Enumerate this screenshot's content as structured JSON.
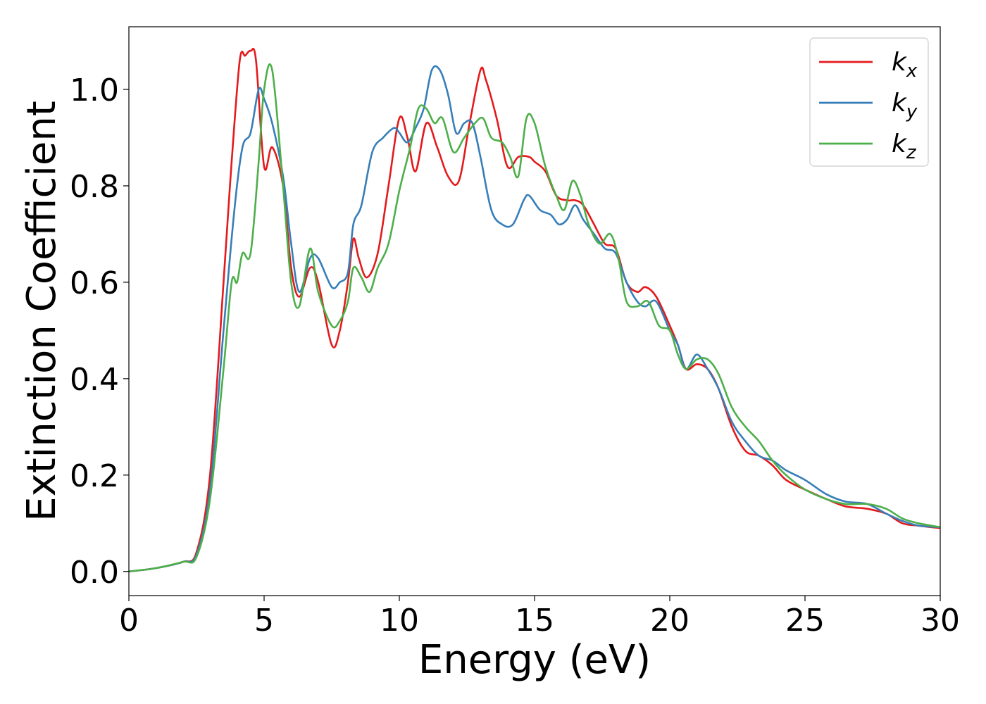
{
  "chart_data": {
    "type": "line",
    "xlabel": "Energy (eV)",
    "ylabel": "Extinction Coefficient",
    "xlim": [
      0,
      30
    ],
    "ylim": [
      -0.05,
      1.13
    ],
    "xticks": [
      0,
      5,
      10,
      15,
      20,
      25,
      30
    ],
    "yticks": [
      0.0,
      0.2,
      0.4,
      0.6,
      0.8,
      1.0
    ],
    "xtick_labels": [
      "0",
      "5",
      "10",
      "15",
      "20",
      "25",
      "30"
    ],
    "ytick_labels": [
      "0.0",
      "0.2",
      "0.4",
      "0.6",
      "0.8",
      "1.0"
    ],
    "grid": false,
    "legend_position": "top-right",
    "series": [
      {
        "name": "k",
        "subscript": "x",
        "color": "#e41a1c",
        "x": [
          0,
          1,
          2,
          2.5,
          3,
          3.5,
          3.8,
          4.1,
          4.3,
          4.5,
          4.7,
          5.0,
          5.3,
          5.7,
          6.0,
          6.3,
          6.7,
          7.0,
          7.5,
          7.8,
          8.1,
          8.3,
          8.5,
          8.8,
          9.2,
          9.6,
          10.0,
          10.3,
          10.6,
          11.0,
          11.4,
          11.8,
          12.2,
          12.6,
          13.0,
          13.2,
          13.6,
          14.0,
          14.4,
          14.8,
          15.0,
          15.4,
          15.8,
          16.2,
          16.5,
          16.8,
          17.2,
          17.6,
          18.0,
          18.4,
          18.8,
          19.1,
          19.5,
          20.0,
          20.3,
          20.6,
          21.0,
          21.4,
          21.8,
          22.3,
          22.8,
          23.3,
          23.8,
          24.3,
          25.0,
          25.8,
          26.5,
          27.3,
          28.0,
          28.6,
          29.2,
          30.0
        ],
        "y": [
          0.0,
          0.007,
          0.02,
          0.04,
          0.2,
          0.6,
          0.85,
          1.06,
          1.07,
          1.08,
          1.06,
          0.84,
          0.88,
          0.8,
          0.63,
          0.57,
          0.63,
          0.6,
          0.47,
          0.5,
          0.6,
          0.69,
          0.65,
          0.61,
          0.66,
          0.8,
          0.94,
          0.9,
          0.83,
          0.93,
          0.88,
          0.82,
          0.81,
          0.93,
          1.04,
          1.02,
          0.94,
          0.84,
          0.86,
          0.86,
          0.85,
          0.83,
          0.78,
          0.77,
          0.77,
          0.76,
          0.72,
          0.68,
          0.67,
          0.6,
          0.58,
          0.59,
          0.57,
          0.51,
          0.47,
          0.42,
          0.43,
          0.42,
          0.38,
          0.3,
          0.25,
          0.24,
          0.22,
          0.19,
          0.17,
          0.15,
          0.135,
          0.13,
          0.12,
          0.1,
          0.095,
          0.09
        ]
      },
      {
        "name": "k",
        "subscript": "y",
        "color": "#377eb8",
        "x": [
          0,
          1,
          2,
          2.5,
          3,
          3.5,
          3.9,
          4.2,
          4.5,
          4.8,
          5.0,
          5.3,
          5.7,
          6.0,
          6.3,
          6.7,
          7.0,
          7.5,
          7.8,
          8.1,
          8.3,
          8.6,
          9.0,
          9.4,
          9.8,
          10.0,
          10.3,
          10.6,
          10.9,
          11.2,
          11.5,
          11.8,
          12.1,
          12.4,
          12.7,
          13.0,
          13.4,
          13.8,
          14.2,
          14.6,
          14.8,
          15.2,
          15.6,
          15.9,
          16.2,
          16.5,
          16.8,
          17.2,
          17.6,
          18.0,
          18.4,
          18.8,
          19.1,
          19.5,
          20.0,
          20.3,
          20.6,
          21.0,
          21.4,
          21.8,
          22.3,
          22.8,
          23.3,
          23.8,
          24.3,
          25.0,
          25.8,
          26.5,
          27.3,
          28.0,
          28.6,
          29.2,
          30.0
        ],
        "y": [
          0.0,
          0.007,
          0.02,
          0.035,
          0.17,
          0.5,
          0.75,
          0.88,
          0.91,
          1.0,
          0.98,
          0.93,
          0.82,
          0.68,
          0.58,
          0.65,
          0.65,
          0.59,
          0.6,
          0.62,
          0.72,
          0.76,
          0.87,
          0.9,
          0.92,
          0.91,
          0.89,
          0.92,
          0.96,
          1.04,
          1.04,
          0.99,
          0.91,
          0.93,
          0.93,
          0.86,
          0.75,
          0.72,
          0.72,
          0.77,
          0.78,
          0.75,
          0.74,
          0.72,
          0.73,
          0.76,
          0.73,
          0.7,
          0.67,
          0.66,
          0.6,
          0.56,
          0.55,
          0.56,
          0.5,
          0.47,
          0.42,
          0.45,
          0.42,
          0.38,
          0.31,
          0.27,
          0.24,
          0.23,
          0.21,
          0.19,
          0.16,
          0.145,
          0.14,
          0.12,
          0.105,
          0.095,
          0.092
        ]
      },
      {
        "name": "k",
        "subscript": "z",
        "color": "#4daf4a",
        "x": [
          0,
          1,
          2,
          2.5,
          3,
          3.5,
          3.8,
          4.0,
          4.2,
          4.5,
          4.8,
          5.0,
          5.3,
          5.7,
          6.0,
          6.3,
          6.7,
          7.0,
          7.5,
          7.8,
          8.1,
          8.3,
          8.6,
          8.9,
          9.2,
          9.6,
          10.0,
          10.4,
          10.7,
          11.0,
          11.3,
          11.6,
          12.0,
          12.4,
          12.8,
          13.1,
          13.4,
          13.8,
          14.1,
          14.4,
          14.7,
          15.0,
          15.4,
          15.8,
          16.1,
          16.4,
          16.7,
          17.0,
          17.4,
          17.8,
          18.1,
          18.4,
          18.8,
          19.2,
          19.6,
          20.0,
          20.3,
          20.6,
          21.0,
          21.4,
          21.8,
          22.3,
          22.8,
          23.3,
          23.8,
          24.3,
          25.0,
          25.8,
          26.5,
          27.3,
          28.0,
          28.6,
          29.2,
          30.0
        ],
        "y": [
          0.0,
          0.007,
          0.02,
          0.03,
          0.15,
          0.42,
          0.6,
          0.6,
          0.66,
          0.66,
          0.85,
          1.0,
          1.04,
          0.8,
          0.6,
          0.55,
          0.67,
          0.58,
          0.51,
          0.52,
          0.56,
          0.63,
          0.61,
          0.58,
          0.63,
          0.68,
          0.79,
          0.88,
          0.96,
          0.96,
          0.93,
          0.94,
          0.87,
          0.9,
          0.93,
          0.94,
          0.9,
          0.89,
          0.86,
          0.82,
          0.94,
          0.93,
          0.84,
          0.78,
          0.75,
          0.81,
          0.78,
          0.72,
          0.68,
          0.7,
          0.65,
          0.56,
          0.55,
          0.56,
          0.51,
          0.5,
          0.45,
          0.42,
          0.44,
          0.44,
          0.41,
          0.34,
          0.3,
          0.27,
          0.23,
          0.2,
          0.17,
          0.15,
          0.14,
          0.14,
          0.13,
          0.11,
          0.1,
          0.092
        ]
      }
    ]
  }
}
